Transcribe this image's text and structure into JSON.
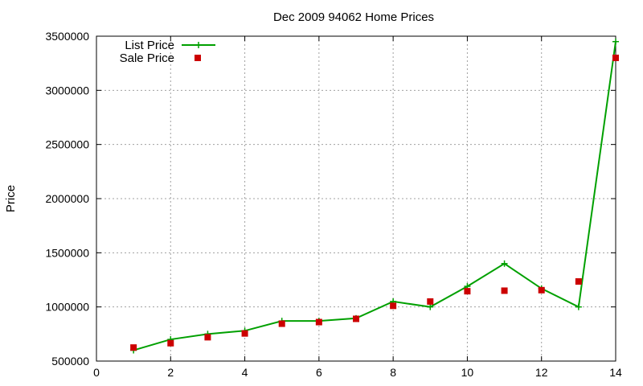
{
  "chart_data": {
    "type": "line",
    "title": "Dec 2009 94062 Home Prices",
    "xlabel": "",
    "ylabel": "Price",
    "xlim": [
      0,
      14
    ],
    "ylim": [
      500000,
      3500000
    ],
    "xticks": [
      0,
      2,
      4,
      6,
      8,
      10,
      12,
      14
    ],
    "yticks": [
      500000,
      1000000,
      1500000,
      2000000,
      2500000,
      3000000,
      3500000
    ],
    "grid": true,
    "legend_position": "top-left",
    "series": [
      {
        "name": "List Price",
        "style": "lines-with-plus-markers",
        "color": "#00a000",
        "x": [
          1,
          2,
          3,
          4,
          5,
          6,
          7,
          8,
          9,
          10,
          11,
          12,
          13,
          14
        ],
        "y": [
          600000,
          700000,
          750000,
          780000,
          870000,
          870000,
          895000,
          1050000,
          1000000,
          1190000,
          1400000,
          1170000,
          1000000,
          3450000
        ]
      },
      {
        "name": "Sale Price",
        "style": "square-points",
        "color": "#cc0000",
        "x": [
          1,
          2,
          3,
          4,
          5,
          6,
          7,
          8,
          9,
          10,
          11,
          12,
          13,
          14
        ],
        "y": [
          625000,
          665000,
          720000,
          755000,
          845000,
          860000,
          890000,
          1010000,
          1050000,
          1145000,
          1150000,
          1155000,
          1235000,
          3300000
        ]
      }
    ]
  }
}
